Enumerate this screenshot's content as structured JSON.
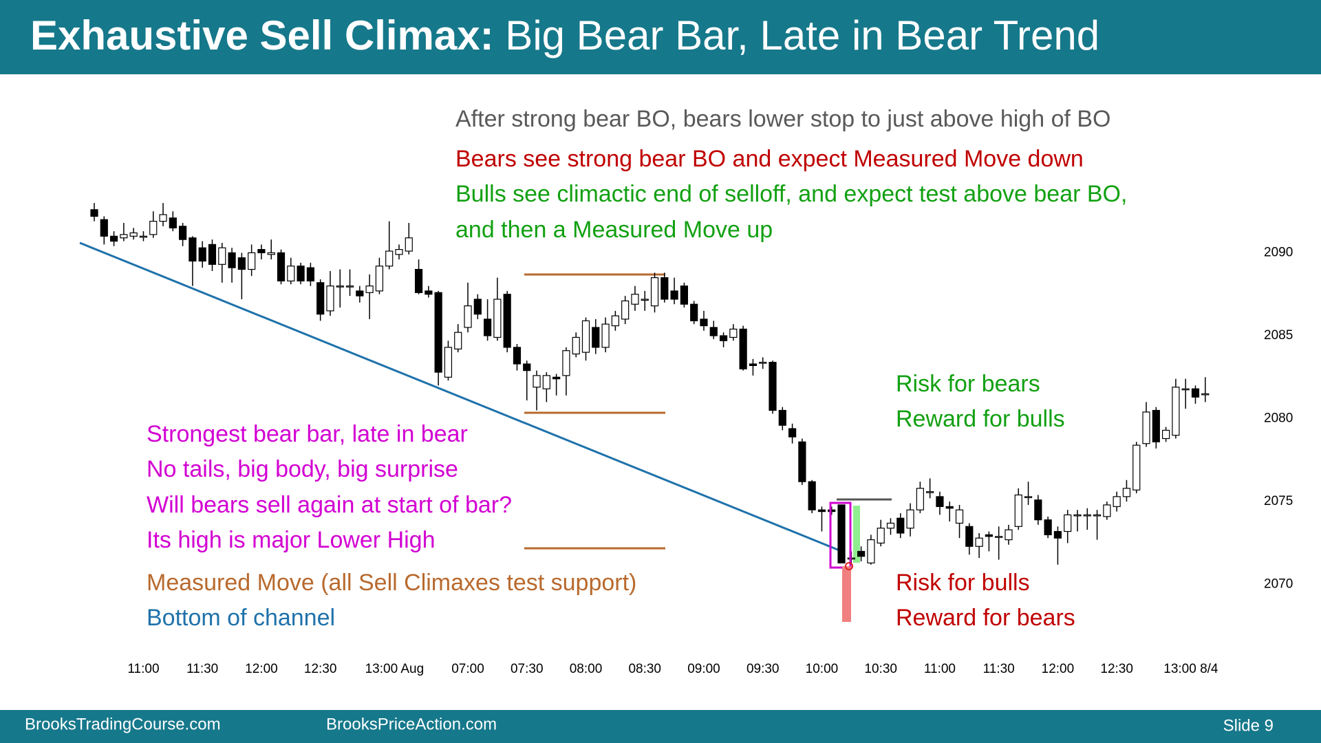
{
  "header": {
    "title_bold": "Exhaustive Sell Climax:",
    "title_rest": "Big Bear Bar, Late in Bear Trend"
  },
  "annotations": [
    {
      "text": "After strong bear BO, bears lower stop to just above high of BO",
      "color": "#595959"
    },
    {
      "text": "Bears see strong bear BO and expect Measured Move down",
      "color": "#c00000"
    },
    {
      "text": "Bulls see climactic end of selloff, and expect test above bear BO,",
      "color": "#12a012"
    },
    {
      "text": "and then a Measured Move up",
      "color": "#12a012"
    },
    {
      "text": "Strongest bear bar, late in bear",
      "color": "#d200d2"
    },
    {
      "text": "No tails, big body, big surprise",
      "color": "#d200d2"
    },
    {
      "text": "Will bears sell again at start of bar?",
      "color": "#d200d2"
    },
    {
      "text": "Its high is major Lower High",
      "color": "#d200d2"
    },
    {
      "text": "Measured Move (all Sell Climaxes test support)",
      "color": "#b8692d"
    },
    {
      "text": "Bottom of channel",
      "color": "#1f72aa"
    },
    {
      "text": "Risk for bears",
      "color": "#12a012"
    },
    {
      "text": "Reward for bulls",
      "color": "#12a012"
    },
    {
      "text": "Risk for bulls",
      "color": "#c00000"
    },
    {
      "text": "Reward for bears",
      "color": "#c00000"
    }
  ],
  "chart_data": {
    "type": "candlestick",
    "categories": [
      null,
      null,
      null,
      null,
      null,
      "11:00",
      null,
      null,
      null,
      null,
      null,
      "11:30",
      null,
      null,
      null,
      null,
      null,
      "12:00",
      null,
      null,
      null,
      null,
      null,
      "12:30",
      null,
      null,
      null,
      null,
      null,
      "13:00 Aug",
      null,
      null,
      null,
      null,
      null,
      null,
      null,
      null,
      "07:00",
      null,
      null,
      null,
      null,
      null,
      "07:30",
      null,
      null,
      null,
      null,
      null,
      "08:00",
      null,
      null,
      null,
      null,
      null,
      "08:30",
      null,
      null,
      null,
      null,
      null,
      "09:00",
      null,
      null,
      null,
      null,
      null,
      "09:30",
      null,
      null,
      null,
      null,
      null,
      "10:00",
      null,
      null,
      null,
      null,
      null,
      "10:30",
      null,
      null,
      null,
      null,
      null,
      "11:00",
      null,
      null,
      null,
      null,
      null,
      "11:30",
      null,
      null,
      null,
      null,
      null,
      "12:00",
      null,
      null,
      null,
      null,
      null,
      "12:30",
      null,
      null,
      null,
      null,
      null,
      "13:00 8/4",
      null,
      null,
      null
    ],
    "open": [
      2092.6,
      2092.0,
      2091.0,
      2090.9,
      2091.0,
      2091.0,
      2091.1,
      2091.9,
      2092.1,
      2091.6,
      2090.9,
      2090.3,
      2090.5,
      2089.3,
      2090.0,
      2089.7,
      2089.0,
      2090.2,
      2089.9,
      2090.0,
      2088.3,
      2089.2,
      2089.1,
      2088.2,
      2086.5,
      2088.0,
      2088.0,
      2087.7,
      2087.6,
      2087.7,
      2089.2,
      2089.9,
      2090.1,
      2089.0,
      2087.7,
      2087.6,
      2082.5,
      2084.2,
      2085.5,
      2087.2,
      2086.0,
      2084.9,
      2087.5,
      2084.3,
      2083.3,
      2081.9,
      2081.8,
      2082.5,
      2082.6,
      2083.9,
      2084.0,
      2085.5,
      2084.3,
      2085.6,
      2086.0,
      2086.9,
      2087.2,
      2086.8,
      2088.5,
      2087.7,
      2088.0,
      2086.9,
      2086.0,
      2085.5,
      2085.0,
      2084.9,
      2085.4,
      2083.3,
      2083.4,
      2083.4,
      2080.5,
      2079.4,
      2078.6,
      2076.2,
      2074.5,
      2074.5,
      2074.8,
      2071.6,
      2072.0,
      2071.3,
      2072.5,
      2073.4,
      2074.0,
      2073.4,
      2074.5,
      2075.6,
      2075.3,
      2074.7,
      2073.7,
      2073.5,
      2072.3,
      2073.0,
      2072.9,
      2072.7,
      2073.5,
      2075.3,
      2075.1,
      2073.9,
      2073.2,
      2073.2,
      2074.2,
      2074.2,
      2074.2,
      2074.1,
      2074.7,
      2075.3,
      2075.7,
      2078.5,
      2080.5,
      2078.8,
      2079.0,
      2081.8,
      2081.8,
      2081.5
    ],
    "high": [
      2093.0,
      2092.2,
      2091.3,
      2091.8,
      2091.5,
      2091.3,
      2092.5,
      2093.0,
      2092.5,
      2091.8,
      2091.0,
      2090.7,
      2090.8,
      2090.6,
      2090.3,
      2090.0,
      2090.5,
      2090.5,
      2090.8,
      2090.2,
      2089.7,
      2089.4,
      2089.4,
      2088.4,
      2088.9,
      2089.0,
      2089.0,
      2088.0,
      2088.7,
      2089.7,
      2091.9,
      2090.5,
      2091.8,
      2089.6,
      2088.0,
      2087.7,
      2084.7,
      2085.7,
      2088.2,
      2087.5,
      2087.2,
      2088.5,
      2087.7,
      2084.5,
      2083.5,
      2082.9,
      2082.8,
      2082.7,
      2084.3,
      2085.2,
      2086.1,
      2086.0,
      2086.1,
      2086.5,
      2087.4,
      2088.0,
      2087.7,
      2088.8,
      2088.8,
      2088.5,
      2088.2,
      2087.1,
      2086.5,
      2085.9,
      2085.2,
      2085.7,
      2085.6,
      2083.6,
      2083.7,
      2083.5,
      2080.7,
      2079.7,
      2078.8,
      2076.3,
      2074.7,
      2074.7,
      2074.8,
      2072.0,
      2072.3,
      2073.0,
      2073.9,
      2074.0,
      2074.3,
      2074.9,
      2076.2,
      2076.4,
      2075.6,
      2075.0,
      2074.8,
      2073.7,
      2073.1,
      2073.2,
      2073.5,
      2073.6,
      2075.8,
      2076.2,
      2075.4,
      2074.1,
      2073.5,
      2074.5,
      2074.5,
      2074.6,
      2074.5,
      2075.0,
      2075.6,
      2076.3,
      2078.6,
      2081.0,
      2080.7,
      2079.5,
      2082.4,
      2082.4,
      2082.0,
      2082.5
    ],
    "low": [
      2091.9,
      2090.5,
      2090.4,
      2090.7,
      2090.8,
      2090.7,
      2090.9,
      2091.6,
      2091.3,
      2090.4,
      2088.0,
      2089.1,
      2088.9,
      2088.2,
      2088.2,
      2087.2,
      2088.6,
      2089.6,
      2089.6,
      2088.1,
      2088.1,
      2088.1,
      2088.0,
      2085.9,
      2086.2,
      2086.7,
      2087.4,
      2087.0,
      2086.0,
      2087.5,
      2089.0,
      2089.6,
      2089.9,
      2087.5,
      2087.3,
      2082.0,
      2082.3,
      2084.0,
      2085.2,
      2086.0,
      2084.7,
      2084.7,
      2084.0,
      2082.9,
      2081.1,
      2080.5,
      2081.0,
      2081.4,
      2081.4,
      2083.7,
      2083.5,
      2083.9,
      2084.0,
      2085.3,
      2085.7,
      2086.5,
      2086.5,
      2086.4,
      2087.0,
      2086.9,
      2086.7,
      2085.7,
      2085.3,
      2084.8,
      2084.3,
      2084.7,
      2082.9,
      2082.6,
      2083.0,
      2080.3,
      2079.3,
      2078.5,
      2076.0,
      2074.3,
      2073.2,
      2074.2,
      2071.3,
      2071.2,
      2071.4,
      2071.2,
      2072.3,
      2073.0,
      2072.8,
      2072.9,
      2074.3,
      2075.2,
      2074.2,
      2073.8,
      2072.8,
      2071.8,
      2071.6,
      2072.0,
      2071.5,
      2072.4,
      2073.3,
      2074.8,
      2073.6,
      2072.8,
      2071.2,
      2072.5,
      2073.2,
      2073.3,
      2072.7,
      2073.9,
      2074.4,
      2075.0,
      2075.5,
      2078.3,
      2078.2,
      2078.6,
      2078.8,
      2080.6,
      2080.9,
      2081.0
    ],
    "close": [
      2092.2,
      2091.0,
      2090.7,
      2091.1,
      2091.2,
      2091.0,
      2091.9,
      2092.3,
      2091.5,
      2090.8,
      2089.5,
      2089.5,
      2089.3,
      2090.3,
      2089.1,
      2089.0,
      2090.0,
      2090.0,
      2090.0,
      2088.3,
      2089.2,
      2088.3,
      2088.3,
      2086.3,
      2088.0,
      2088.0,
      2088.0,
      2087.4,
      2088.0,
      2089.2,
      2090.1,
      2090.2,
      2090.9,
      2087.6,
      2087.5,
      2082.8,
      2084.3,
      2085.2,
      2086.8,
      2086.3,
      2085.0,
      2087.2,
      2084.3,
      2083.3,
      2082.9,
      2082.6,
      2082.6,
      2082.4,
      2084.1,
      2084.9,
      2085.9,
      2084.3,
      2085.7,
      2086.2,
      2087.1,
      2087.5,
      2087.2,
      2088.5,
      2087.2,
      2087.2,
      2086.9,
      2085.9,
      2085.6,
      2085.0,
      2084.7,
      2085.4,
      2083.0,
      2083.2,
      2083.4,
      2080.5,
      2079.6,
      2078.9,
      2076.2,
      2074.5,
      2074.4,
      2074.4,
      2071.3,
      2071.6,
      2071.7,
      2072.7,
      2073.4,
      2073.7,
      2073.1,
      2074.5,
      2075.8,
      2075.6,
      2074.7,
      2074.6,
      2074.5,
      2072.3,
      2072.8,
      2072.9,
      2072.9,
      2073.3,
      2075.4,
      2075.3,
      2073.9,
      2073.0,
      2072.8,
      2074.2,
      2074.2,
      2074.2,
      2074.2,
      2074.8,
      2075.3,
      2075.8,
      2078.4,
      2080.4,
      2078.6,
      2079.3,
      2081.9,
      2081.8,
      2081.3,
      2081.5
    ],
    "up_color": "#ffffff",
    "down_color": "#000000",
    "ylim": [
      2067,
      2094
    ],
    "yticks": [
      2070,
      2075,
      2080,
      2085,
      2090
    ]
  },
  "footer": {
    "left": "BrooksTradingCourse.com",
    "middle": "BrooksPriceAction.com",
    "slide": "Slide  9"
  }
}
